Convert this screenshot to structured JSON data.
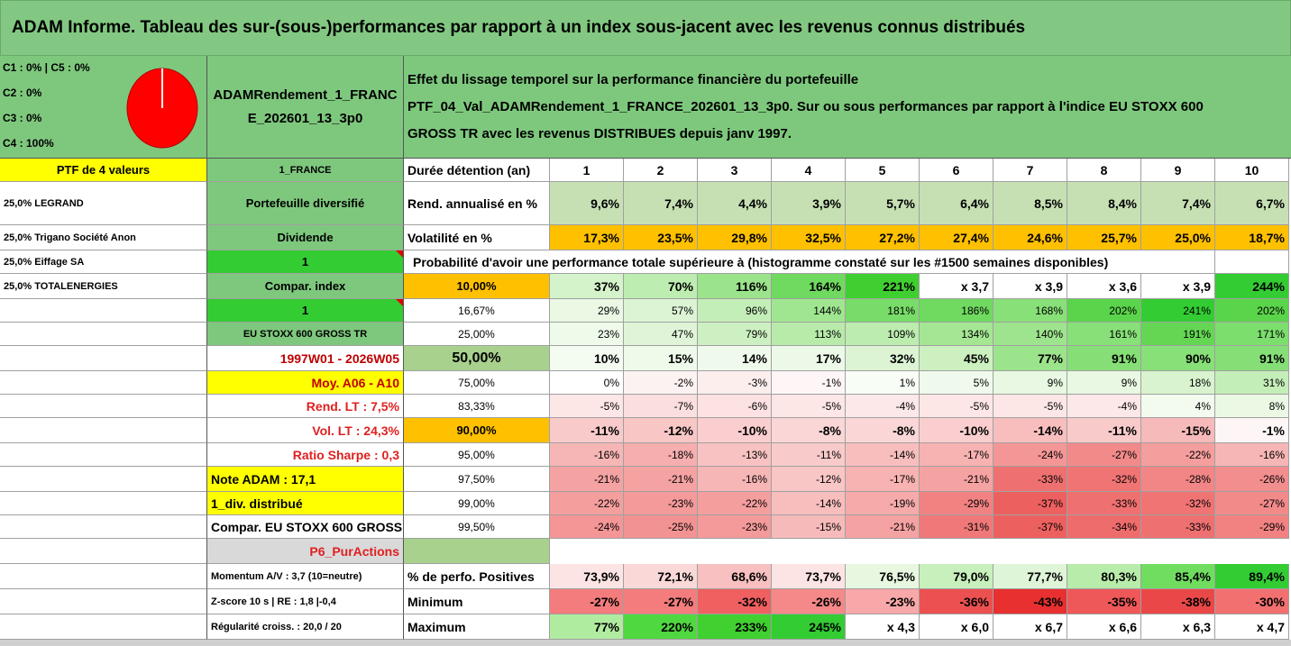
{
  "header": {
    "title": "ADAM Informe. Tableau des sur-(sous-)performances par rapport à un index sous-jacent avec les revenus connus distribués"
  },
  "summary": {
    "lines": [
      "C1 : 0% | C5 : 0%",
      "C2 : 0%",
      "C3 : 0%",
      "C4 : 100%"
    ]
  },
  "portfolio": {
    "name": "ADAMRendement_1_FRANCE_202601_13_3p0",
    "description": [
      "Effet du lissage temporel sur la performance financière du portefeuille",
      "PTF_04_Val_ADAMRendement_1_FRANCE_202601_13_3p0. Sur ou sous performances par rapport à l'indice EU STOXX 600",
      "GROSS TR avec les revenus DISTRIBUES depuis janv 1997."
    ]
  },
  "probability_caption": "Probabilité d'avoir une performance totale supérieure à (histogramme constaté sur les #1500 semaines disponibles)",
  "rows": [
    {
      "cells": [
        "PTF de 4 valeurs",
        "1_FRANCE",
        "Durée détention (an)",
        "1",
        "2",
        "3",
        "4",
        "5",
        "6",
        "7",
        "8",
        "9",
        "10"
      ],
      "fills": [
        "#ffff00",
        "#7ec87e",
        "#ffffff",
        "#ffffff",
        "#ffffff",
        "#ffffff",
        "#ffffff",
        "#ffffff",
        "#ffffff",
        "#ffffff",
        "#ffffff",
        "#ffffff",
        "#ffffff"
      ]
    },
    {
      "cells": [
        "25,0% LEGRAND",
        "Portefeuille diversifié",
        "Rend. annualisé en %",
        "9,6%",
        "7,4%",
        "4,4%",
        "3,9%",
        "5,7%",
        "6,4%",
        "8,5%",
        "8,4%",
        "7,4%",
        "6,7%"
      ],
      "fills": [
        "#ffffff",
        "#7ec87e",
        "#ffffff",
        "#c6e0b4",
        "#c6e0b4",
        "#c6e0b4",
        "#c6e0b4",
        "#c6e0b4",
        "#c6e0b4",
        "#c6e0b4",
        "#c6e0b4",
        "#c6e0b4",
        "#c6e0b4"
      ]
    },
    {
      "cells": [
        "25,0% Trigano Société Anon",
        "Dividende",
        "Volatilité en %",
        "17,3%",
        "23,5%",
        "29,8%",
        "32,5%",
        "27,2%",
        "27,4%",
        "24,6%",
        "25,7%",
        "25,0%",
        "18,7%"
      ],
      "fills": [
        "#ffffff",
        "#7ec87e",
        "#ffffff",
        "#ffc000",
        "#ffc000",
        "#ffc000",
        "#ffc000",
        "#ffc000",
        "#ffc000",
        "#ffc000",
        "#ffc000",
        "#ffc000",
        "#ffc000"
      ]
    },
    {
      "cells": [
        "25,0% Eiffage SA",
        "1",
        null,
        null,
        null,
        null,
        null,
        null,
        null,
        null,
        null,
        null,
        null
      ],
      "fills": [
        "#ffffff",
        "#33cc33",
        "#ffffff",
        "#ffffff",
        "#ffffff",
        "#ffffff",
        "#ffffff",
        "#ffffff",
        "#ffffff",
        "#ffffff",
        "#ffffff",
        "#ffffff",
        "#ffffff"
      ]
    },
    {
      "cells": [
        "25,0% TOTALENERGIES",
        "Compar. index",
        "10,00%",
        "37%",
        "70%",
        "116%",
        "164%",
        "221%",
        "x 3,7",
        "x 3,9",
        "x 3,6",
        "x 3,9",
        "244%"
      ],
      "fills": [
        "#ffffff",
        "#7ec87e",
        "#ffc000",
        "#d4f3ca",
        "#bdedb0",
        "#9ce48c",
        "#70da60",
        "#40cf30",
        "#ffffff",
        "#ffffff",
        "#ffffff",
        "#ffffff",
        "#33cc33"
      ]
    },
    {
      "cells": [
        null,
        "1",
        "16,67%",
        "29%",
        "57%",
        "96%",
        "144%",
        "181%",
        "186%",
        "168%",
        "202%",
        "241%",
        "202%"
      ],
      "fills": [
        "#ffffff",
        "#33cc33",
        "#ffffff",
        "#eaf8e4",
        "#dcf4d4",
        "#c4eeb8",
        "#a0e690",
        "#78dc68",
        "#70da60",
        "#88e078",
        "#5ad44a",
        "#33cc33",
        "#5ad44a"
      ]
    },
    {
      "cells": [
        null,
        "EU STOXX 600 GROSS TR",
        "25,00%",
        "23%",
        "47%",
        "79%",
        "113%",
        "109%",
        "134%",
        "140%",
        "161%",
        "191%",
        "171%"
      ],
      "fills": [
        "#ffffff",
        "#7ec87e",
        "#ffffff",
        "#eefaea",
        "#e0f5d8",
        "#cdf0c2",
        "#b8ebaa",
        "#bcecae",
        "#a4e694",
        "#9ee48e",
        "#88e078",
        "#64d654",
        "#7cde6c"
      ]
    },
    {
      "cells": [
        null,
        "1997W01 - 2026W05",
        "50,00%",
        "10%",
        "15%",
        "14%",
        "17%",
        "32%",
        "45%",
        "77%",
        "91%",
        "90%",
        "91%"
      ],
      "fills": [
        "#ffffff",
        "#ffffff",
        "#a9d18e",
        "#f4fcf2",
        "#eefaea",
        "#f0faec",
        "#ecf9e8",
        "#dcf4d4",
        "#ccf0c0",
        "#9ce48c",
        "#86df76",
        "#88e078",
        "#86df76"
      ]
    },
    {
      "cells": [
        null,
        "Moy. A06 - A10",
        "75,00%",
        "0%",
        "-2%",
        "-3%",
        "-1%",
        "1%",
        "5%",
        "9%",
        "9%",
        "18%",
        "31%"
      ],
      "fills": [
        "#ffffff",
        "#ffff00",
        "#ffffff",
        "#ffffff",
        "#fdf2f2",
        "#fdeeee",
        "#fef6f6",
        "#f8fdf6",
        "#f0faec",
        "#e8f8e2",
        "#e8f8e2",
        "#d8f3ce",
        "#c4eeb8"
      ]
    },
    {
      "cells": [
        null,
        "Rend. LT : 7,5%",
        "83,33%",
        "-5%",
        "-7%",
        "-6%",
        "-5%",
        "-4%",
        "-5%",
        "-5%",
        "-4%",
        "4%",
        "8%"
      ],
      "fills": [
        "#ffffff",
        "#ffffff",
        "#ffffff",
        "#fce6e6",
        "#fbdede",
        "#fce2e2",
        "#fce6e6",
        "#fce8e8",
        "#fce6e6",
        "#fce6e6",
        "#fce8e8",
        "#f2fbee",
        "#eaf8e4"
      ]
    },
    {
      "cells": [
        null,
        "Vol. LT : 24,3%",
        "90,00%",
        "-11%",
        "-12%",
        "-10%",
        "-8%",
        "-8%",
        "-10%",
        "-14%",
        "-11%",
        "-15%",
        "-1%"
      ],
      "fills": [
        "#ffffff",
        "#ffffff",
        "#ffc000",
        "#f9caca",
        "#f9c6c6",
        "#facece",
        "#fad6d6",
        "#fad6d6",
        "#facece",
        "#f8bebe",
        "#f9caca",
        "#f7baba",
        "#fef6f6"
      ]
    },
    {
      "cells": [
        null,
        "Ratio Sharpe : 0,3",
        "95,00%",
        "-16%",
        "-18%",
        "-13%",
        "-11%",
        "-14%",
        "-17%",
        "-24%",
        "-27%",
        "-22%",
        "-16%"
      ],
      "fills": [
        "#ffffff",
        "#ffffff",
        "#ffffff",
        "#f7b6b6",
        "#f6aeae",
        "#f8c2c2",
        "#f9caca",
        "#f8bebe",
        "#f7b2b2",
        "#f49696",
        "#f28a8a",
        "#f59e9e",
        "#f7b6b6"
      ]
    },
    {
      "cells": [
        null,
        "Note ADAM : 17,1",
        "97,50%",
        "-21%",
        "-21%",
        "-16%",
        "-12%",
        "-17%",
        "-21%",
        "-33%",
        "-32%",
        "-28%",
        "-26%"
      ],
      "fills": [
        "#ffffff",
        "#ffff00",
        "#ffffff",
        "#f5a2a2",
        "#f5a2a2",
        "#f7b6b6",
        "#f9c6c6",
        "#f7b2b2",
        "#f5a2a2",
        "#ef7070",
        "#f07474",
        "#f28686",
        "#f38e8e"
      ]
    },
    {
      "cells": [
        null,
        "1_div. distribué",
        "99,00%",
        "-22%",
        "-23%",
        "-22%",
        "-14%",
        "-19%",
        "-29%",
        "-37%",
        "-33%",
        "-32%",
        "-27%"
      ],
      "fills": [
        "#ffffff",
        "#ffff00",
        "#ffffff",
        "#f59e9e",
        "#f49a9a",
        "#f59e9e",
        "#f8bebe",
        "#f6aaaa",
        "#f28282",
        "#ed6060",
        "#ef7070",
        "#f07474",
        "#f28a8a"
      ]
    },
    {
      "cells": [
        null,
        "Compar. EU STOXX 600 GROSS TR",
        "99,50%",
        "-24%",
        "-25%",
        "-23%",
        "-15%",
        "-21%",
        "-31%",
        "-37%",
        "-34%",
        "-33%",
        "-29%"
      ],
      "fills": [
        "#ffffff",
        "#ffffff",
        "#ffffff",
        "#f49696",
        "#f39292",
        "#f49a9a",
        "#f7baba",
        "#f5a2a2",
        "#f07878",
        "#ed6060",
        "#ef6c6c",
        "#ef7070",
        "#f28282"
      ]
    },
    {
      "cells": [
        null,
        "P6_PurActions",
        null,
        null,
        null,
        null,
        null,
        null,
        null,
        null,
        null,
        null,
        null
      ],
      "fills": [
        "#ffffff",
        "#d9d9d9",
        "#a9d18e",
        "#ffffff",
        "#ffffff",
        "#ffffff",
        "#ffffff",
        "#ffffff",
        "#ffffff",
        "#ffffff",
        "#ffffff",
        "#ffffff",
        "#ffffff"
      ]
    },
    {
      "cells": [
        null,
        "Momentum A/V : 3,7 (10=neutre)",
        "% de perfo. Positives",
        "73,9%",
        "72,1%",
        "68,6%",
        "73,7%",
        "76,5%",
        "79,0%",
        "77,7%",
        "80,3%",
        "85,4%",
        "89,4%"
      ],
      "fills": [
        "#ffffff",
        "#ffffff",
        "#ffffff",
        "#fce4e4",
        "#fbd8d8",
        "#f8c0c0",
        "#fce4e4",
        "#e8f7e0",
        "#c8f0bc",
        "#dff5d8",
        "#b8ecaa",
        "#70dc60",
        "#33cc33"
      ]
    },
    {
      "cells": [
        null,
        "Z-score 10 s | RE : 1,8 |-0,4",
        "Minimum",
        "-27%",
        "-27%",
        "-32%",
        "-26%",
        "-23%",
        "-36%",
        "-43%",
        "-35%",
        "-38%",
        "-30%"
      ],
      "fills": [
        "#ffffff",
        "#ffffff",
        "#ffffff",
        "#f47c7c",
        "#f47c7c",
        "#f06060",
        "#f58888",
        "#f8a8a8",
        "#ec5050",
        "#e83030",
        "#ee5858",
        "#ea4848",
        "#f27070"
      ]
    },
    {
      "cells": [
        null,
        "Régularité croiss. : 20,0 / 20",
        "Maximum",
        "77%",
        "220%",
        "233%",
        "245%",
        "x 4,3",
        "x 6,0",
        "x 6,7",
        "x 6,6",
        "x 6,3",
        "x 4,7"
      ],
      "fills": [
        "#ffffff",
        "#ffffff",
        "#ffffff",
        "#b0eca0",
        "#50d840",
        "#40d030",
        "#33cc33",
        "#ffffff",
        "#ffffff",
        "#ffffff",
        "#ffffff",
        "#ffffff",
        "#ffffff"
      ]
    }
  ]
}
